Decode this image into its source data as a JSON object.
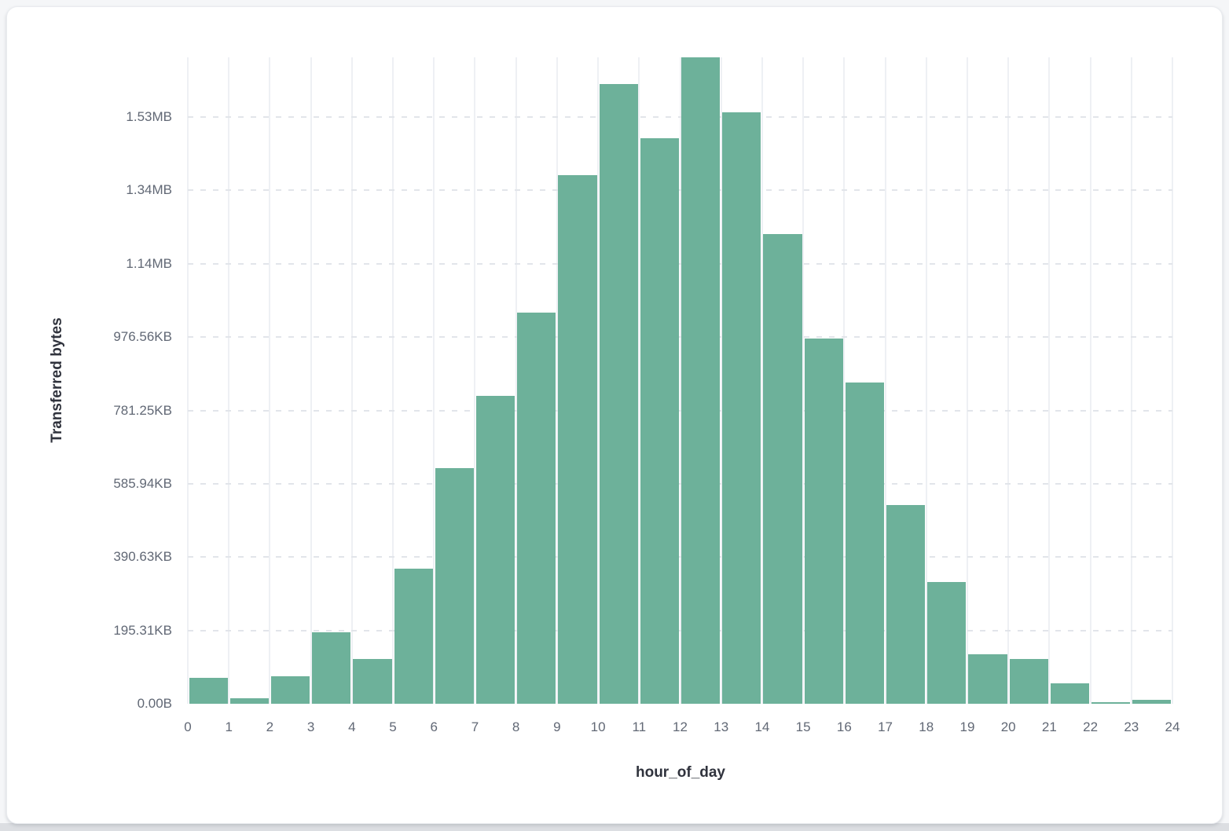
{
  "page": {
    "background_color": "#f5f6f8",
    "bottom_strip_color": "#dcdee2",
    "card_background": "#ffffff"
  },
  "chart_data": {
    "type": "bar",
    "subtype": "histogram",
    "title": "",
    "xlabel": "hour_of_day",
    "ylabel": "Transferred bytes",
    "y_unit": "bytes",
    "categories": [
      0,
      1,
      2,
      3,
      4,
      5,
      6,
      7,
      8,
      9,
      10,
      11,
      12,
      13,
      14,
      15,
      16,
      17,
      18,
      19,
      20,
      21,
      22,
      23
    ],
    "values": [
      70000,
      14000,
      76000,
      196000,
      123000,
      368000,
      642000,
      839000,
      1066000,
      1442000,
      1690000,
      1543000,
      1764000,
      1612000,
      1280000,
      996000,
      876000,
      543000,
      331000,
      136000,
      123000,
      55000,
      4000,
      10000
    ],
    "xlim": [
      0,
      24
    ],
    "ylim": [
      0,
      1764000
    ],
    "x_tick_labels": [
      "0",
      "1",
      "2",
      "3",
      "4",
      "5",
      "6",
      "7",
      "8",
      "9",
      "10",
      "11",
      "12",
      "13",
      "14",
      "15",
      "16",
      "17",
      "18",
      "19",
      "20",
      "21",
      "22",
      "23",
      "24"
    ],
    "y_ticks": [
      {
        "value": 0,
        "label": "0.00B"
      },
      {
        "value": 200000,
        "label": "195.31KB"
      },
      {
        "value": 400000,
        "label": "390.63KB"
      },
      {
        "value": 600000,
        "label": "585.94KB"
      },
      {
        "value": 800000,
        "label": "781.25KB"
      },
      {
        "value": 1000000,
        "label": "976.56KB"
      },
      {
        "value": 1200000,
        "label": "1.14MB"
      },
      {
        "value": 1400000,
        "label": "1.34MB"
      },
      {
        "value": 1600000,
        "label": "1.53MB"
      }
    ],
    "grid": true,
    "legend_position": "none",
    "bar_color": "#6db19a",
    "bar_gap_color": "#ffffff",
    "x_gridline_color": "#eef0f4",
    "y_gridline_color": "#e2e5ea",
    "tick_label_color": "#616875",
    "axis_title_color": "#30333d"
  }
}
